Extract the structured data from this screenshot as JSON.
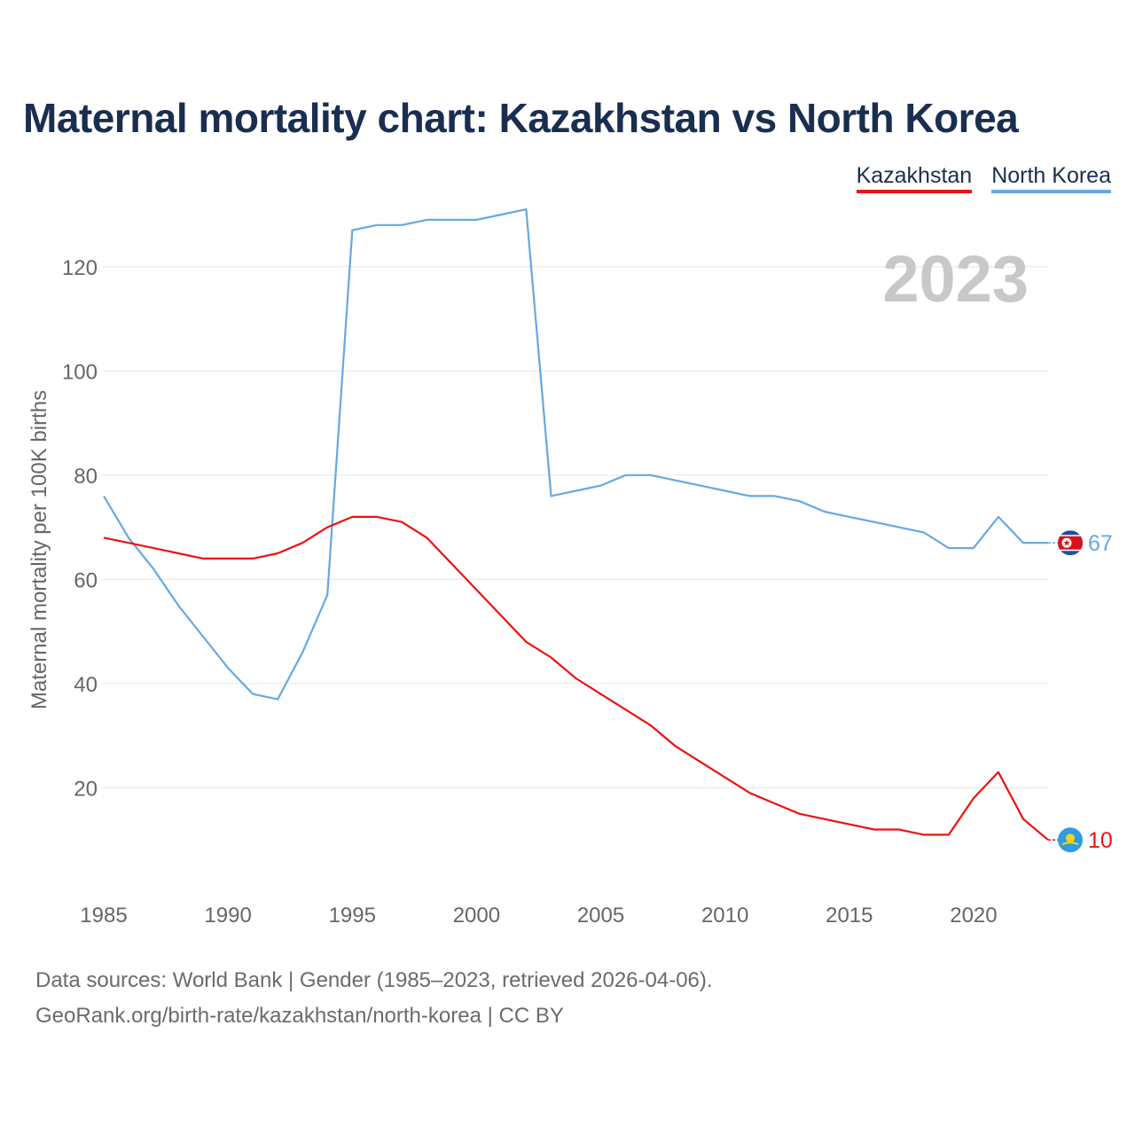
{
  "title": "Maternal mortality chart: Kazakhstan vs North Korea",
  "legend": {
    "kazakhstan": "Kazakhstan",
    "north_korea": "North Korea"
  },
  "year_label": "2023",
  "footer": {
    "line1": "Data sources: World Bank | Gender (1985–2023, retrieved 2026-04-06).",
    "line2": "GeoRank.org/birth-rate/kazakhstan/north-korea | CC BY"
  },
  "colors": {
    "kazakhstan": "#ee1111",
    "north_korea": "#65a9e3",
    "title": "#1a2e4f",
    "grid": "#e6e6e6",
    "tick": "#666666",
    "year": "#c8c8c8"
  },
  "chart_data": {
    "type": "line",
    "title": "Maternal mortality chart: Kazakhstan vs North Korea",
    "xlabel": "",
    "ylabel": "Maternal mortality per 100K births",
    "xlim": [
      1985,
      2023
    ],
    "ylim": [
      0,
      130
    ],
    "xticks": [
      1985,
      1990,
      1995,
      2000,
      2005,
      2010,
      2015,
      2020
    ],
    "yticks": [
      20,
      40,
      60,
      80,
      100,
      120
    ],
    "grid": true,
    "legend_position": "top-right",
    "x": [
      1985,
      1986,
      1987,
      1988,
      1989,
      1990,
      1991,
      1992,
      1993,
      1994,
      1995,
      1996,
      1997,
      1998,
      1999,
      2000,
      2001,
      2002,
      2003,
      2004,
      2005,
      2006,
      2007,
      2008,
      2009,
      2010,
      2011,
      2012,
      2013,
      2014,
      2015,
      2016,
      2017,
      2018,
      2019,
      2020,
      2021,
      2022,
      2023
    ],
    "series": [
      {
        "name": "Kazakhstan",
        "end_label": "10",
        "values": [
          68,
          67,
          66,
          65,
          64,
          64,
          64,
          65,
          67,
          70,
          72,
          72,
          71,
          68,
          63,
          58,
          53,
          48,
          45,
          41,
          38,
          35,
          32,
          28,
          25,
          22,
          19,
          17,
          15,
          14,
          13,
          12,
          12,
          11,
          11,
          18,
          23,
          14,
          10
        ]
      },
      {
        "name": "North Korea",
        "end_label": "67",
        "values": [
          76,
          68,
          62,
          55,
          49,
          43,
          38,
          37,
          46,
          57,
          127,
          128,
          128,
          129,
          129,
          129,
          130,
          131,
          76,
          77,
          78,
          80,
          80,
          79,
          78,
          77,
          76,
          76,
          75,
          73,
          72,
          71,
          70,
          69,
          66,
          66,
          72,
          67,
          67
        ]
      }
    ]
  }
}
